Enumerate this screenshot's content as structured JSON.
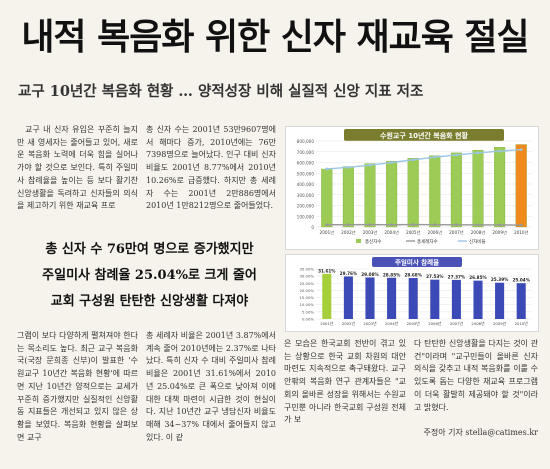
{
  "headline": "내적 복음화 위한 신자 재교육 절실",
  "subhead": "교구 10년간 복음화 현황 … 양적성장 비해 실질적 신앙 지표 저조",
  "body": {
    "col1_top": "교구 내 신자 유입은 꾸준히 늘지만 새 영세자는 줄어들고 있어, 새로운 복음화 노력에 더욱 힘을 실어나가야 할 것으로 보인다. 특히 주일미사 참례율을 높이는 등 보다 활기찬 신앙생활을 독려하고 신자들의 의식을 제고하기 위한 재교육 프로",
    "col2_top": "총 신자 수는 2001년 53만9607명에서 해마다 증가, 2010년에는 76만7398명으로 늘어났다. 인구 대비 신자비율도 2001년 8.77%에서 2010년 10.26%로 급증했다. 하지만 총 세례자 수는 2001년 2만886명에서 2010년 1만8212명으로 줄어들었다.",
    "col1_bottom": "그램이 보다 다양하게 펼쳐져야 한다는 목소리도 높다. 최근 교구 복음화국(국장 문희종 신부)이 발표한 '수원교구 10년간 복음화 현황'에 따르면 지난 10년간 양적으로는 교세가 꾸준히 증가했지만 실질적인 신앙활동 지표들은 개선되고 있지 않은 상황을 보였다. 복음화 현황을 살펴보면 교구",
    "col2_bottom": "총 세례자 비율은 2001년 3.87%에서 계속 줄어 2010년에는 2.37%로 나타났다. 특히 신자 수 대비 주일미사 참례 비율은 2001년 31.61%에서 2010년 25.04%로 큰 폭으로 낮아져 이에 대한 대책 마련이 시급한 것이 현실이다. 지난 10년간 교구 냉담신자 비율도 매해 34~37% 대에서 줄어들지 않고 있다. 이 같",
    "col3_bottom": "은 모습은 한국교회 전반이 겪고 있는 상황으로 한국 교회 차원의 대안 마련도 지속적으로 촉구돼왔다. 교구 안팎의 복음화 연구 관계자들은 \"교회의 올바른 성장을 위해서는 수원교구민뿐 아니라 한국교회 구성원 전체가 보",
    "col4_bottom": "다 탄탄한 신앙생활을 다지는 것이 관건\"이라며 \"교구민들이 올바른 신자 의식을 갖추고 내적 복음화를 이룰 수 있도록 돕는 다양한 재교육 프로그램이 더욱 활발히 제공돼야 할 것\"이라고 밝혔다.",
    "byline": "주정아 기자 stella@catimes.kr"
  },
  "pull_quote": {
    "line1": "총 신자 수 76만여 명으로 증가했지만",
    "line2": "주일미사 참례율 25.04%로 크게 줄어",
    "line3": "교회 구성원 탄탄한 신앙생활 다져야"
  },
  "chart_data": [
    {
      "type": "bar",
      "title": "수원교구 10년간 복음화 현황",
      "categories": [
        "2001년",
        "2002년",
        "2003년",
        "2004년",
        "2005년",
        "2006년",
        "2007년",
        "2008년",
        "2009년",
        "2010년"
      ],
      "ylim": [
        0,
        800000
      ],
      "yticks": [
        "800,000",
        "700,000",
        "600,000",
        "500,000",
        "400,000",
        "300,000",
        "200,000",
        "100,000",
        "0"
      ],
      "series": [
        {
          "name": "총신자수",
          "type": "bar",
          "values": [
            539607,
            562000,
            590000,
            613000,
            640000,
            664000,
            690000,
            715000,
            741000,
            767398
          ]
        },
        {
          "name": "총세례자수",
          "type": "line",
          "values": [
            20886,
            21500,
            22000,
            21000,
            22500,
            21800,
            20500,
            19800,
            19000,
            18212
          ]
        },
        {
          "name": "신자비율",
          "type": "line",
          "values": [
            540000,
            555000,
            575000,
            600000,
            625000,
            650000,
            670000,
            690000,
            705000,
            720000
          ]
        }
      ],
      "colors": {
        "bars": "#9ccc55",
        "bar_last": "#f08a1c",
        "line1": "#9cc6e6",
        "line2": "#c8c8c8",
        "title_bg": "#7a7d2e"
      }
    },
    {
      "type": "bar",
      "title": "주일미사 참례율",
      "categories": [
        "2001년",
        "2002년",
        "2003년",
        "2004년",
        "2005년",
        "2006년",
        "2007년",
        "2008년",
        "2009년",
        "2010년"
      ],
      "values": [
        31.61,
        29.76,
        29.08,
        28.85,
        28.68,
        27.53,
        27.37,
        26.85,
        25.39,
        25.04
      ],
      "labels": [
        "31.61%",
        "29.76%",
        "29.08%",
        "28.85%",
        "28.68%",
        "27.53%",
        "27.37%",
        "26.85%",
        "25.39%",
        "25.04%"
      ],
      "ylim": [
        0,
        35
      ],
      "yticks": [
        "35.00%",
        "30.00%",
        "25.00%",
        "20.00%",
        "15.00%",
        "10.00%",
        "5.00%",
        "0.00%"
      ],
      "colors": {
        "first": "#a6cf3c",
        "rest": "#3c4ab8",
        "title_bg": "#4a52b8"
      }
    }
  ]
}
